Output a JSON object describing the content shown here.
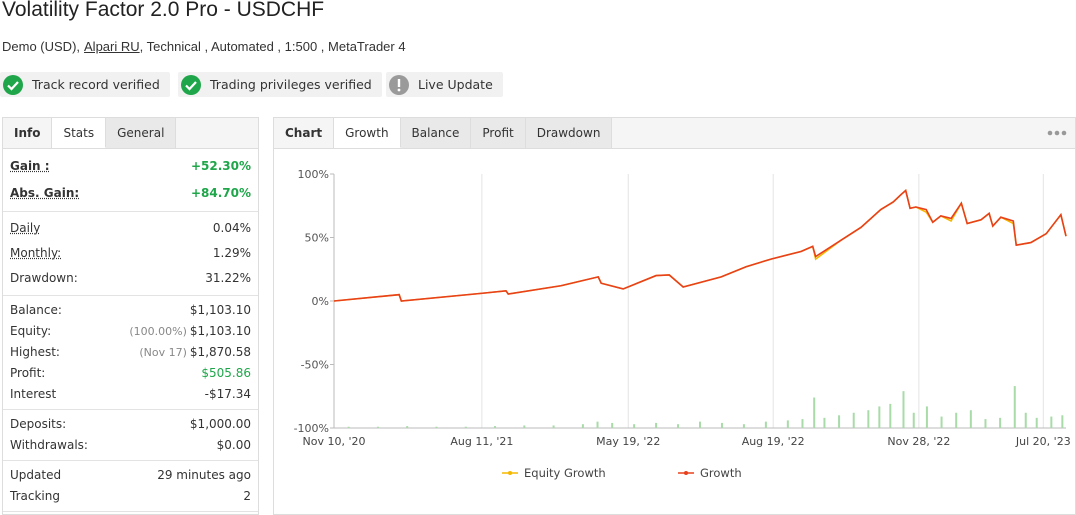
{
  "header": {
    "title": "Volatility Factor 2.0 Pro - USDCHF",
    "subtitle": [
      "Demo (USD),",
      "Alpari RU",
      ", Technical , Automated , 1:500 , MetaTrader 4"
    ]
  },
  "badges": [
    "Track record verified",
    "Trading privileges verified",
    "Live Update"
  ],
  "left_tabs": {
    "items": [
      "Info",
      "Stats",
      "General"
    ],
    "active": 1
  },
  "stats": [
    [
      {
        "label": "Gain :",
        "value": "+52.30%",
        "color": "#1fa64a",
        "bold": true,
        "underlined": true
      },
      {
        "label": "Abs. Gain:",
        "value": "+84.70%",
        "color": "#1fa64a",
        "bold": true,
        "underlined": true
      }
    ],
    [
      {
        "label": "Daily",
        "value": "0.04%",
        "underlined": true
      },
      {
        "label": "Monthly:",
        "value": "1.29%",
        "underlined": true
      },
      {
        "label": "Drawdown:",
        "value": "31.22%"
      }
    ],
    [
      {
        "label": "Balance:",
        "value": "$1,103.10"
      },
      {
        "label": "Equity:",
        "note": "(100.00%)",
        "value": "$1,103.10"
      },
      {
        "label": "Highest:",
        "note": "(Nov 17)",
        "value": "$1,870.58"
      },
      {
        "label": "Profit:",
        "value": "$505.86",
        "color": "#1fa64a"
      },
      {
        "label": "Interest",
        "value": "-$17.34"
      }
    ],
    [
      {
        "label": "Deposits:",
        "value": "$1,000.00"
      },
      {
        "label": "Withdrawals:",
        "value": "$0.00"
      }
    ],
    [
      {
        "label": "Updated",
        "value": "29 minutes ago"
      },
      {
        "label": "Tracking",
        "value": "2"
      }
    ]
  ],
  "right_tabs": {
    "items": [
      "Chart",
      "Growth",
      "Balance",
      "Profit",
      "Drawdown"
    ],
    "active": 1
  },
  "chart_data": {
    "type": "line",
    "x": [
      0,
      8.9,
      9.2,
      20.1,
      23.5,
      23.8,
      31,
      36.1,
      36.5,
      39.5,
      44,
      45.8,
      47.7,
      52.9,
      56.3,
      59.7,
      63.8,
      65.4,
      65.8,
      69.3,
      72,
      74.7,
      76.4,
      77.5,
      78.1,
      78.7,
      79.5,
      80.9,
      81.8,
      82.9,
      84.3,
      85.7,
      86.5,
      88.4,
      89.5,
      90,
      91.1,
      92.8,
      93.2,
      95.2,
      97.3,
      99.3,
      100
    ],
    "series": [
      {
        "name": "Equity Growth",
        "color": "#f5b800",
        "values": [
          0,
          5,
          0,
          6,
          8,
          5.5,
          12,
          19,
          14,
          9.5,
          20,
          20.5,
          11,
          19,
          27,
          33,
          39,
          43,
          33,
          48,
          58,
          72,
          78,
          84,
          87,
          73,
          74,
          70,
          62,
          67,
          63,
          77,
          61,
          64,
          69,
          59,
          66,
          61,
          44,
          46,
          53,
          68,
          51
        ]
      },
      {
        "name": "Growth",
        "color": "#e8401c",
        "values": [
          0,
          5,
          0,
          6,
          8,
          5.5,
          12,
          19,
          14,
          9.5,
          20,
          20.5,
          11,
          19,
          27,
          33,
          39,
          43,
          35,
          48,
          58,
          72,
          78,
          84,
          87,
          73,
          74,
          72,
          62,
          67,
          65,
          77,
          61,
          64,
          69,
          59,
          66,
          63,
          44,
          46,
          53,
          68,
          51
        ]
      }
    ],
    "bars": {
      "color": "#a8dba8",
      "x": [
        2,
        6,
        10,
        14,
        18,
        22,
        26,
        30,
        34,
        36,
        38,
        41,
        44,
        47,
        50,
        53,
        56,
        59,
        62,
        64,
        65.6,
        67,
        69,
        71,
        73,
        74.5,
        76,
        77.8,
        79.2,
        81,
        83,
        85,
        87,
        89,
        91,
        93,
        94.5,
        96,
        98,
        99.5
      ],
      "values": [
        1,
        1,
        1.5,
        1,
        1,
        1.5,
        2,
        2,
        3,
        5,
        4,
        3,
        4,
        3,
        5,
        4,
        3,
        5,
        6,
        7,
        24,
        8,
        10,
        12,
        14,
        17,
        19,
        29,
        12,
        17,
        9,
        12,
        14,
        7,
        8,
        33,
        12,
        8,
        9,
        10
      ]
    },
    "xlim": [
      0,
      100
    ],
    "ylim": [
      -100,
      100
    ],
    "xticks": [
      {
        "value": 0,
        "label": "Nov 10, '20"
      },
      {
        "value": 20.2,
        "label": "Aug 11, '21"
      },
      {
        "value": 40.2,
        "label": "May 19, '22"
      },
      {
        "value": 60,
        "label": "Aug 19, '22"
      },
      {
        "value": 79.9,
        "label": "Nov 28, '22"
      },
      {
        "value": 96.9,
        "label": "Jul 20, '23"
      }
    ],
    "yticks": [
      {
        "value": 100,
        "label": "100%"
      },
      {
        "value": 50,
        "label": "50%"
      },
      {
        "value": 0,
        "label": "0%"
      },
      {
        "value": -50,
        "label": "-50%"
      },
      {
        "value": -100,
        "label": "-100%"
      }
    ],
    "grid": true
  }
}
